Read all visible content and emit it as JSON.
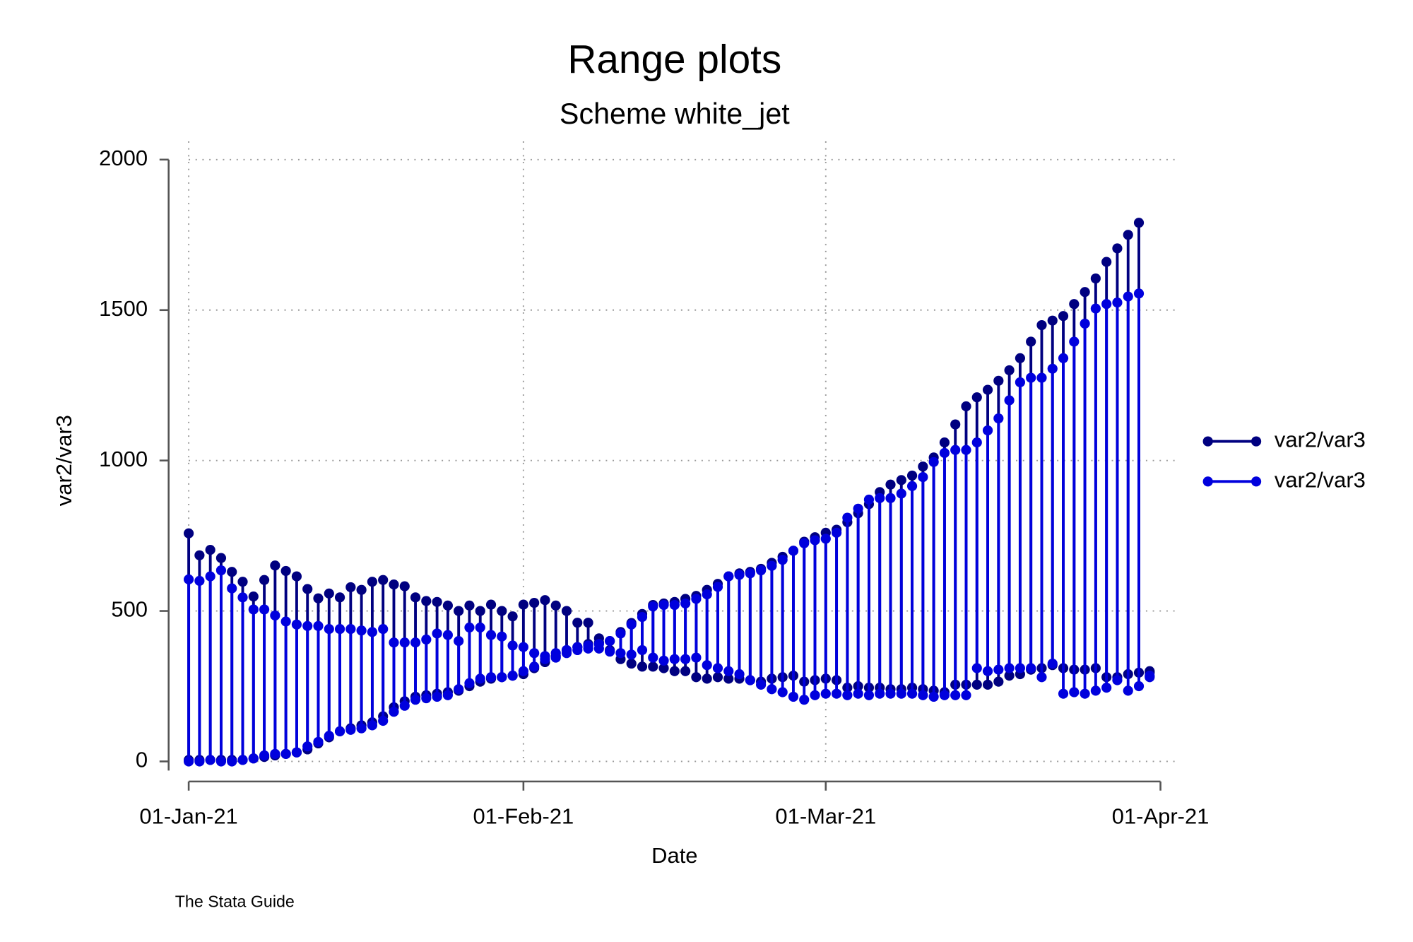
{
  "chart_data": {
    "type": "range",
    "title": "Range plots",
    "subtitle": "Scheme white_jet",
    "xlabel": "Date",
    "ylabel": "var2/var3",
    "note": "The Stata Guide",
    "legend": "right",
    "grid": true,
    "x": [
      "2021-01-01",
      "2021-01-02",
      "2021-01-03",
      "2021-01-04",
      "2021-01-05",
      "2021-01-06",
      "2021-01-07",
      "2021-01-08",
      "2021-01-09",
      "2021-01-10",
      "2021-01-11",
      "2021-01-12",
      "2021-01-13",
      "2021-01-14",
      "2021-01-15",
      "2021-01-16",
      "2021-01-17",
      "2021-01-18",
      "2021-01-19",
      "2021-01-20",
      "2021-01-21",
      "2021-01-22",
      "2021-01-23",
      "2021-01-24",
      "2021-01-25",
      "2021-01-26",
      "2021-01-27",
      "2021-01-28",
      "2021-01-29",
      "2021-01-30",
      "2021-01-31",
      "2021-02-01",
      "2021-02-02",
      "2021-02-03",
      "2021-02-04",
      "2021-02-05",
      "2021-02-06",
      "2021-02-07",
      "2021-02-08",
      "2021-02-09",
      "2021-02-10",
      "2021-02-11",
      "2021-02-12",
      "2021-02-13",
      "2021-02-14",
      "2021-02-15",
      "2021-02-16",
      "2021-02-17",
      "2021-02-18",
      "2021-02-19",
      "2021-02-20",
      "2021-02-21",
      "2021-02-22",
      "2021-02-23",
      "2021-02-24",
      "2021-02-25",
      "2021-02-26",
      "2021-02-27",
      "2021-02-28",
      "2021-03-01",
      "2021-03-02",
      "2021-03-03",
      "2021-03-04",
      "2021-03-05",
      "2021-03-06",
      "2021-03-07",
      "2021-03-08",
      "2021-03-09",
      "2021-03-10",
      "2021-03-11",
      "2021-03-12",
      "2021-03-13",
      "2021-03-14",
      "2021-03-15",
      "2021-03-16",
      "2021-03-17",
      "2021-03-18",
      "2021-03-19",
      "2021-03-20",
      "2021-03-21",
      "2021-03-22",
      "2021-03-23",
      "2021-03-24",
      "2021-03-25",
      "2021-03-26",
      "2021-03-27",
      "2021-03-28",
      "2021-03-29",
      "2021-03-30",
      "2021-03-31"
    ],
    "xlim": [
      "2021-01-01",
      "2021-04-01"
    ],
    "xticks": [
      {
        "value": "2021-01-01",
        "label": "01-Jan-21"
      },
      {
        "value": "2021-02-01",
        "label": "01-Feb-21"
      },
      {
        "value": "2021-03-01",
        "label": "01-Mar-21"
      },
      {
        "value": "2021-04-01",
        "label": "01-Apr-21"
      }
    ],
    "ylim": [
      0,
      2000
    ],
    "yticks": [
      0,
      500,
      1000,
      1500,
      2000
    ],
    "series": [
      {
        "name": "var2/var3",
        "color": "#000080",
        "low": [
          5,
          5,
          5,
          5,
          5,
          5,
          10,
          15,
          20,
          25,
          30,
          40,
          60,
          80,
          100,
          110,
          120,
          130,
          150,
          180,
          200,
          215,
          220,
          225,
          230,
          235,
          250,
          265,
          275,
          280,
          285,
          290,
          310,
          330,
          350,
          370,
          380,
          390,
          395,
          370,
          340,
          325,
          315,
          315,
          310,
          300,
          300,
          280,
          275,
          280,
          275,
          275,
          270,
          265,
          275,
          280,
          285,
          265,
          270,
          275,
          270,
          245,
          250,
          245,
          245,
          240,
          240,
          245,
          240,
          235,
          230,
          255,
          255,
          255,
          255,
          265,
          285,
          290,
          305,
          310,
          320,
          310,
          305,
          305,
          310,
          280,
          280,
          290,
          295,
          295
        ],
        "high": [
          758,
          685,
          703,
          676,
          630,
          597,
          548,
          603,
          651,
          633,
          615,
          573,
          542,
          558,
          545,
          579,
          570,
          597,
          603,
          588,
          582,
          545,
          533,
          530,
          518,
          500,
          518,
          500,
          521,
          500,
          482,
          521,
          527,
          536,
          518,
          500,
          461,
          461,
          409,
          400,
          430,
          460,
          490,
          520,
          525,
          530,
          540,
          550,
          570,
          590,
          615,
          625,
          630,
          640,
          660,
          680,
          700,
          730,
          745,
          760,
          770,
          795,
          825,
          855,
          895,
          920,
          935,
          950,
          980,
          1010,
          1060,
          1120,
          1180,
          1210,
          1235,
          1265,
          1300,
          1340,
          1395,
          1450,
          1465,
          1480,
          1520,
          1560,
          1605,
          1660,
          1705,
          1750,
          1790,
          300
        ]
      },
      {
        "name": "var2/var3",
        "color": "#0000dd",
        "low": [
          0,
          0,
          5,
          0,
          0,
          5,
          10,
          20,
          25,
          25,
          30,
          50,
          65,
          85,
          100,
          105,
          110,
          120,
          135,
          165,
          185,
          205,
          210,
          215,
          220,
          240,
          260,
          275,
          280,
          280,
          285,
          300,
          315,
          340,
          345,
          360,
          370,
          375,
          375,
          365,
          360,
          355,
          370,
          345,
          335,
          340,
          340,
          345,
          320,
          310,
          300,
          290,
          270,
          255,
          240,
          230,
          215,
          205,
          220,
          225,
          225,
          220,
          225,
          220,
          225,
          225,
          225,
          225,
          220,
          215,
          220,
          220,
          220,
          310,
          300,
          305,
          310,
          310,
          310,
          280,
          325,
          225,
          230,
          225,
          235,
          245,
          270,
          235,
          250,
          280
        ],
        "high": [
          605,
          600,
          615,
          635,
          575,
          545,
          505,
          505,
          485,
          465,
          455,
          450,
          450,
          440,
          440,
          440,
          435,
          430,
          440,
          395,
          395,
          395,
          405,
          425,
          420,
          400,
          445,
          445,
          420,
          415,
          385,
          380,
          360,
          350,
          360,
          370,
          380,
          385,
          390,
          400,
          425,
          455,
          480,
          515,
          520,
          520,
          525,
          540,
          555,
          580,
          615,
          620,
          625,
          635,
          650,
          670,
          700,
          725,
          735,
          740,
          760,
          810,
          840,
          870,
          875,
          875,
          890,
          915,
          945,
          995,
          1025,
          1035,
          1035,
          1060,
          1100,
          1140,
          1200,
          1260,
          1275,
          1275,
          1305,
          1340,
          1395,
          1455,
          1505,
          1520,
          1525,
          1545,
          1555,
          285
        ]
      }
    ]
  }
}
